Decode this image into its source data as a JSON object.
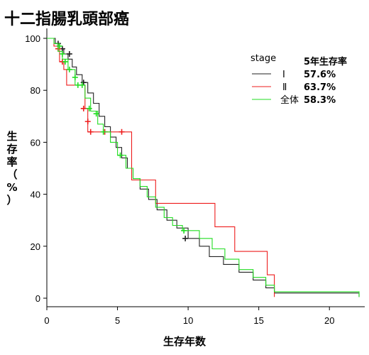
{
  "chart_data": {
    "type": "line",
    "subtype": "kaplan-meier step curves",
    "title": "十二指腸乳頭部癌",
    "xlabel": "生存年数",
    "ylabel_chars": [
      "生",
      "存",
      "率",
      "（",
      "%",
      "）"
    ],
    "xlim": [
      0,
      22.5
    ],
    "ylim": [
      0,
      100
    ],
    "xticks": [
      0,
      5,
      10,
      15,
      20
    ],
    "yticks": [
      0,
      20,
      40,
      60,
      80,
      100
    ],
    "grid": false,
    "legend": {
      "position": "top-right",
      "title": "stage",
      "rate_header": "5年生存率"
    },
    "colors": {
      "stage1": "#222222",
      "stage2": "#ee1c1c",
      "all": "#22dd22"
    },
    "series": [
      {
        "name": "Ⅰ",
        "rate": "57.6%",
        "color": "#222222",
        "points": [
          [
            0,
            100
          ],
          [
            0.6,
            100
          ],
          [
            0.6,
            98
          ],
          [
            0.9,
            98
          ],
          [
            0.9,
            96
          ],
          [
            1.2,
            96
          ],
          [
            1.2,
            94
          ],
          [
            1.5,
            94
          ],
          [
            1.5,
            92
          ],
          [
            1.8,
            92
          ],
          [
            1.8,
            89
          ],
          [
            2.1,
            89
          ],
          [
            2.1,
            86
          ],
          [
            2.5,
            86
          ],
          [
            2.5,
            83
          ],
          [
            2.9,
            83
          ],
          [
            2.9,
            79
          ],
          [
            3.3,
            79
          ],
          [
            3.3,
            75
          ],
          [
            3.7,
            75
          ],
          [
            3.7,
            70
          ],
          [
            4.1,
            70
          ],
          [
            4.1,
            66
          ],
          [
            4.5,
            66
          ],
          [
            4.5,
            62
          ],
          [
            4.9,
            62
          ],
          [
            4.9,
            58
          ],
          [
            5.3,
            58
          ],
          [
            5.3,
            54
          ],
          [
            5.7,
            54
          ],
          [
            5.7,
            50
          ],
          [
            6.1,
            50
          ],
          [
            6.1,
            46
          ],
          [
            6.6,
            46
          ],
          [
            6.6,
            42
          ],
          [
            7.2,
            42
          ],
          [
            7.2,
            38
          ],
          [
            7.8,
            38
          ],
          [
            7.8,
            34
          ],
          [
            8.5,
            34
          ],
          [
            8.5,
            30
          ],
          [
            9.2,
            30
          ],
          [
            9.2,
            27
          ],
          [
            10,
            27
          ],
          [
            10,
            23
          ],
          [
            10.8,
            23
          ],
          [
            10.8,
            20
          ],
          [
            11.5,
            20
          ],
          [
            11.5,
            16
          ],
          [
            12.5,
            16
          ],
          [
            12.5,
            13
          ],
          [
            13.6,
            13
          ],
          [
            13.6,
            10
          ],
          [
            14.6,
            10
          ],
          [
            14.6,
            7
          ],
          [
            15.5,
            7
          ],
          [
            15.5,
            4
          ],
          [
            16.1,
            4
          ],
          [
            16.1,
            2
          ],
          [
            22.1,
            2
          ],
          [
            22.1,
            0.5
          ]
        ],
        "censor": [
          [
            0.8,
            98
          ],
          [
            1.1,
            96
          ],
          [
            1.6,
            94
          ],
          [
            2.6,
            83
          ],
          [
            9.8,
            23
          ]
        ]
      },
      {
        "name": "Ⅱ",
        "rate": "63.7%",
        "color": "#ee1c1c",
        "points": [
          [
            0,
            100
          ],
          [
            0.5,
            100
          ],
          [
            0.5,
            97
          ],
          [
            0.9,
            97
          ],
          [
            0.9,
            91
          ],
          [
            1.2,
            91
          ],
          [
            1.2,
            88
          ],
          [
            1.4,
            88
          ],
          [
            1.4,
            82
          ],
          [
            2.7,
            82
          ],
          [
            2.7,
            73
          ],
          [
            2.9,
            73
          ],
          [
            2.9,
            64
          ],
          [
            6,
            64
          ],
          [
            6,
            45.5
          ],
          [
            7.7,
            45.5
          ],
          [
            7.7,
            36.5
          ],
          [
            11.9,
            36.5
          ],
          [
            11.9,
            27.5
          ],
          [
            13.3,
            27.5
          ],
          [
            13.3,
            18
          ],
          [
            15.6,
            18
          ],
          [
            15.6,
            9
          ],
          [
            16.1,
            9
          ],
          [
            16.1,
            0.5
          ]
        ],
        "censor": [
          [
            0.8,
            96
          ],
          [
            1.1,
            91
          ],
          [
            2.6,
            73
          ],
          [
            2.9,
            68
          ],
          [
            3.1,
            64
          ],
          [
            4.1,
            64
          ],
          [
            5.3,
            64
          ]
        ]
      },
      {
        "name": "全体",
        "rate": "58.3%",
        "color": "#22dd22",
        "points": [
          [
            0,
            100
          ],
          [
            0.5,
            100
          ],
          [
            0.5,
            98
          ],
          [
            0.8,
            98
          ],
          [
            0.8,
            95
          ],
          [
            1.1,
            95
          ],
          [
            1.1,
            92
          ],
          [
            1.5,
            92
          ],
          [
            1.5,
            88
          ],
          [
            2,
            88
          ],
          [
            2,
            82
          ],
          [
            2.7,
            82
          ],
          [
            2.7,
            77
          ],
          [
            3.1,
            77
          ],
          [
            3.1,
            72
          ],
          [
            3.6,
            72
          ],
          [
            3.6,
            67
          ],
          [
            4,
            67
          ],
          [
            4,
            64
          ],
          [
            4.5,
            64
          ],
          [
            4.5,
            60
          ],
          [
            5,
            60
          ],
          [
            5,
            55
          ],
          [
            5.6,
            55
          ],
          [
            5.6,
            50
          ],
          [
            6.1,
            50
          ],
          [
            6.1,
            46
          ],
          [
            6.6,
            46
          ],
          [
            6.6,
            43
          ],
          [
            7.1,
            43
          ],
          [
            7.1,
            39
          ],
          [
            7.7,
            39
          ],
          [
            7.7,
            35
          ],
          [
            8.3,
            35
          ],
          [
            8.3,
            31
          ],
          [
            8.9,
            31
          ],
          [
            8.9,
            28
          ],
          [
            9.6,
            28
          ],
          [
            9.6,
            26
          ],
          [
            10.8,
            26
          ],
          [
            10.8,
            23
          ],
          [
            11.7,
            23
          ],
          [
            11.7,
            19
          ],
          [
            12.6,
            19
          ],
          [
            12.6,
            15
          ],
          [
            13.6,
            15
          ],
          [
            13.6,
            11
          ],
          [
            14.6,
            11
          ],
          [
            14.6,
            8
          ],
          [
            15.5,
            8
          ],
          [
            15.5,
            5
          ],
          [
            16.1,
            5
          ],
          [
            16.1,
            2.5
          ],
          [
            22.1,
            2.5
          ],
          [
            22.1,
            0.5
          ]
        ],
        "censor": [
          [
            0.9,
            97
          ],
          [
            1.1,
            94
          ],
          [
            1.3,
            91
          ],
          [
            1.6,
            88
          ],
          [
            2,
            85
          ],
          [
            2.2,
            82
          ],
          [
            2.5,
            82
          ],
          [
            3,
            73
          ],
          [
            3.5,
            71
          ],
          [
            4,
            64
          ],
          [
            5.2,
            55
          ],
          [
            9.7,
            26
          ]
        ]
      }
    ]
  }
}
